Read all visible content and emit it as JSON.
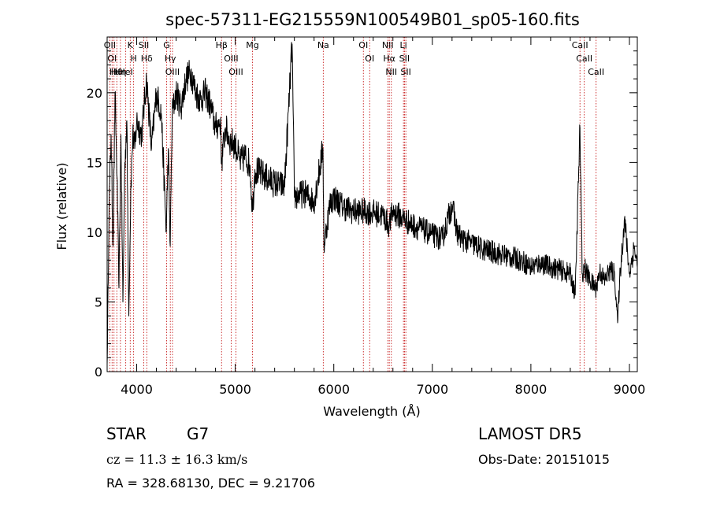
{
  "chart_data": {
    "type": "line",
    "title": "spec-57311-EG215559N100549B01_sp05-160.fits",
    "xlabel": "Wavelength (Å)",
    "ylabel": "Flux (relative)",
    "xlim": [
      3700,
      9080
    ],
    "ylim": [
      0,
      24
    ],
    "xticks": [
      4000,
      5000,
      6000,
      7000,
      8000,
      9000
    ],
    "yticks": [
      0,
      5,
      10,
      15,
      20
    ],
    "line_color": "#000000",
    "marker_color": "#c00000",
    "series": [
      {
        "x": [
          3700,
          3720,
          3740,
          3760,
          3780,
          3800,
          3820,
          3840,
          3860,
          3880,
          3900,
          3920,
          3940,
          3960,
          3980,
          4000,
          4050,
          4100,
          4150,
          4200,
          4250,
          4300,
          4320,
          4340,
          4360,
          4400,
          4450,
          4500,
          4550,
          4600,
          4650,
          4700,
          4750,
          4800,
          4850,
          4861,
          4900,
          4950,
          5000,
          5050,
          5100,
          5150,
          5175,
          5200,
          5300,
          5400,
          5500,
          5577,
          5600,
          5700,
          5800,
          5890,
          5900,
          5960,
          6000,
          6100,
          6200,
          6300,
          6400,
          6500,
          6563,
          6600,
          6700,
          6800,
          6900,
          7000,
          7100,
          7200,
          7250,
          7300,
          7400,
          7500,
          7600,
          7700,
          7800,
          7900,
          8000,
          8100,
          8200,
          8300,
          8400,
          8450,
          8498,
          8520,
          8542,
          8600,
          8662,
          8700,
          8750,
          8800,
          8850,
          8880,
          8900,
          8950,
          9000,
          9050,
          9080
        ],
        "y": [
          0.5,
          12,
          17,
          9,
          20,
          14,
          6,
          17,
          5,
          15,
          18,
          4,
          13,
          17,
          16,
          18,
          17,
          21,
          16,
          20,
          18.5,
          10,
          16,
          9,
          18.5,
          20,
          19,
          21,
          21.5,
          20,
          19.5,
          20,
          19,
          17.5,
          18,
          15,
          17.5,
          16.5,
          16.3,
          15,
          15.5,
          14.8,
          11.5,
          14.5,
          14,
          13.5,
          13.3,
          23.5,
          12.5,
          12.8,
          12.2,
          16,
          9,
          12,
          12.5,
          11.8,
          11.5,
          11.5,
          11.4,
          11.2,
          10.5,
          11.5,
          11,
          10.5,
          10.2,
          9.8,
          9.5,
          12,
          10,
          9.5,
          9.2,
          8.8,
          8.6,
          8.4,
          8.2,
          8,
          7.5,
          7.8,
          7.5,
          7.3,
          7,
          5.5,
          17.5,
          7,
          7.5,
          6.5,
          6,
          7.2,
          6.5,
          7.3,
          7,
          3.5,
          6.5,
          11,
          7,
          9,
          7.5
        ]
      }
    ],
    "lines": [
      {
        "wl": 3727,
        "name": "OII"
      },
      {
        "wl": 3750,
        "name": "OI"
      },
      {
        "wl": 3770,
        "name": "Hι"
      },
      {
        "wl": 3798,
        "name": "Hθ"
      },
      {
        "wl": 3835,
        "name": "Hη"
      },
      {
        "wl": 3889,
        "name": "HeI"
      },
      {
        "wl": 3934,
        "name": "K"
      },
      {
        "wl": 3969,
        "name": "H"
      },
      {
        "wl": 4072,
        "name": "SII"
      },
      {
        "wl": 4102,
        "name": "Hδ"
      },
      {
        "wl": 4304,
        "name": "G"
      },
      {
        "wl": 4341,
        "name": "Hγ"
      },
      {
        "wl": 4363,
        "name": "OIII"
      },
      {
        "wl": 4861,
        "name": "Hβ"
      },
      {
        "wl": 4959,
        "name": "OIII"
      },
      {
        "wl": 5007,
        "name": "OIII"
      },
      {
        "wl": 5175,
        "name": "Mg"
      },
      {
        "wl": 5893,
        "name": "Na"
      },
      {
        "wl": 6300,
        "name": "OI"
      },
      {
        "wl": 6364,
        "name": "OI"
      },
      {
        "wl": 6548,
        "name": "NII"
      },
      {
        "wl": 6563,
        "name": "Hα"
      },
      {
        "wl": 6584,
        "name": "NII"
      },
      {
        "wl": 6707,
        "name": "Li"
      },
      {
        "wl": 6717,
        "name": "SII"
      },
      {
        "wl": 6731,
        "name": "SII"
      },
      {
        "wl": 8498,
        "name": "CaII"
      },
      {
        "wl": 8542,
        "name": "CaII"
      },
      {
        "wl": 8662,
        "name": "CaII"
      }
    ]
  },
  "info": {
    "object_class": "STAR",
    "subclass": "G7",
    "survey": "LAMOST DR5",
    "cz": "cz = 11.3 ± 16.3 km/s",
    "obs_date": "Obs-Date: 20151015",
    "radec": "RA = 328.68130, DEC =   9.21706"
  }
}
